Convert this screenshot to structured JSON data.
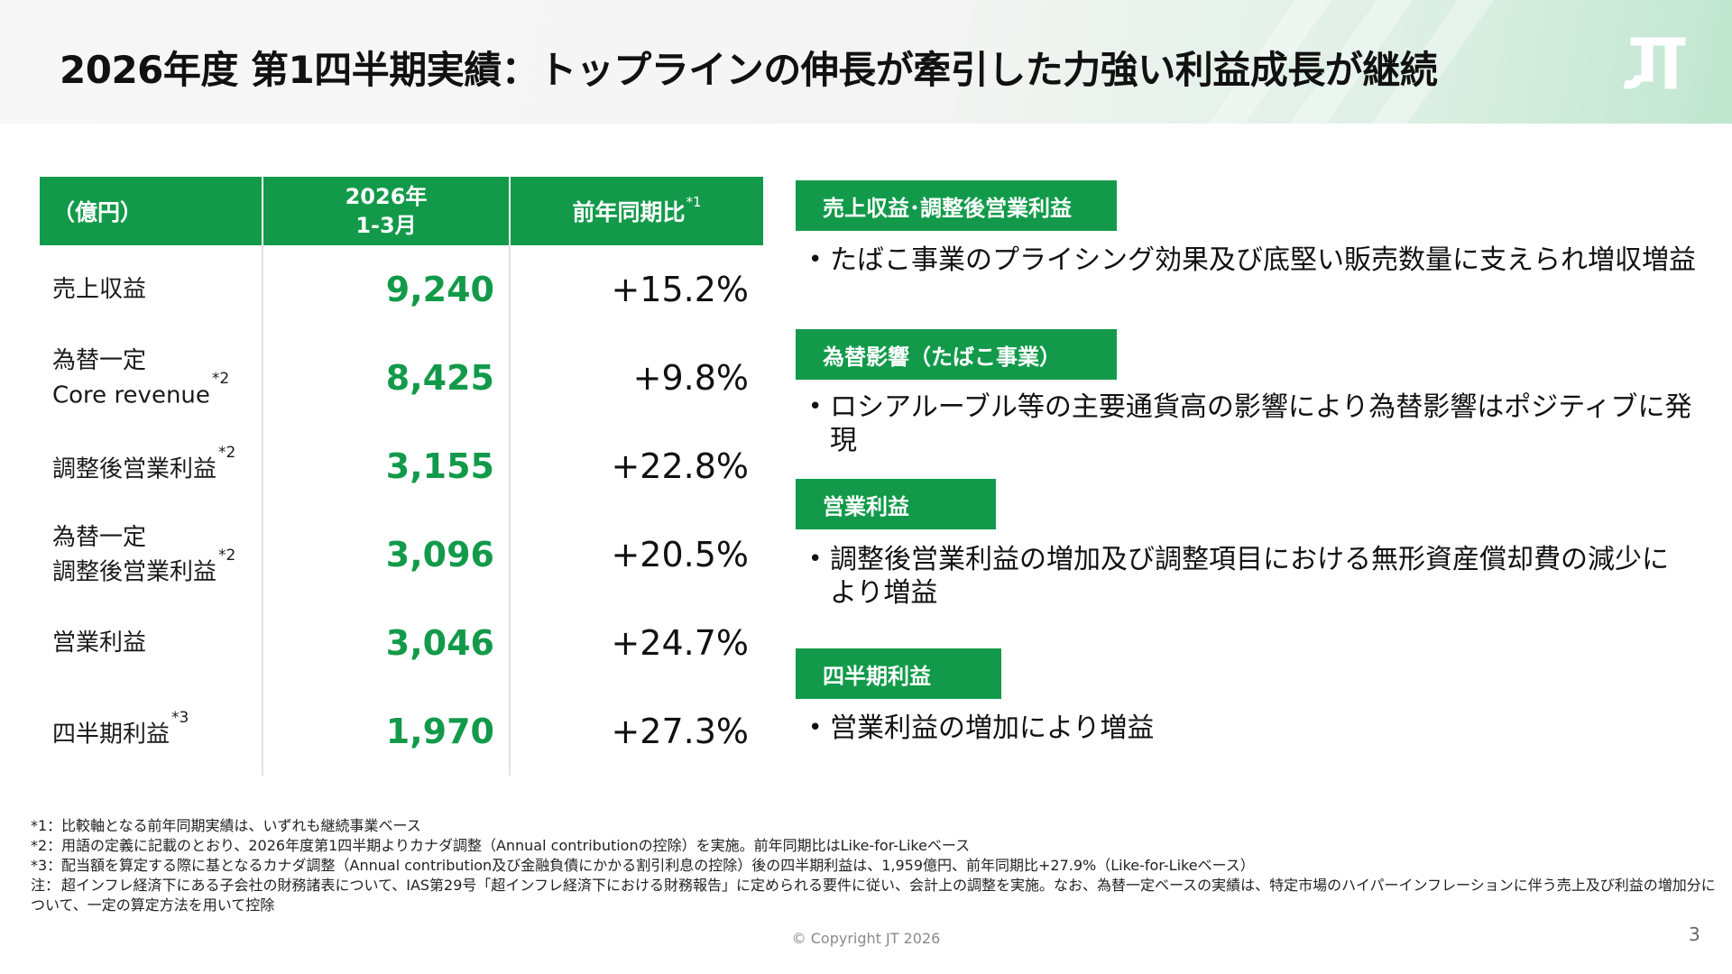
{
  "header": {
    "title": "2026年度 第1四半期実績：トップラインの伸長が牽引した力強い利益成長が継続",
    "logo_text": "JT"
  },
  "table": {
    "col1_header": "（億円）",
    "col2_header_line1": "2026年",
    "col2_header_line2": "1-3月",
    "col3_header": "前年同期比",
    "col3_header_note": "*1",
    "rows": [
      {
        "label_line1": "売上収益",
        "label_line2": "",
        "note": "",
        "value": "9,240",
        "change": "+15.2%"
      },
      {
        "label_line1": "為替一定",
        "label_line2": "Core revenue",
        "note": "*2",
        "value": "8,425",
        "change": "+9.8%"
      },
      {
        "label_line1": "調整後営業利益",
        "label_line2": "",
        "note": "*2",
        "value": "3,155",
        "change": "+22.8%"
      },
      {
        "label_line1": "為替一定",
        "label_line2": "調整後営業利益",
        "note": "*2",
        "value": "3,096",
        "change": "+20.5%"
      },
      {
        "label_line1": "営業利益",
        "label_line2": "",
        "note": "",
        "value": "3,046",
        "change": "+24.7%"
      },
      {
        "label_line1": "四半期利益",
        "label_line2": "",
        "note": "*3",
        "value": "1,970",
        "change": "+27.3%"
      }
    ]
  },
  "sections": [
    {
      "label": "売上収益･調整後営業利益",
      "bullet": "たばこ事業のプライシング効果及び底堅い販売数量に支えられ増収増益"
    },
    {
      "label": "為替影響（たばこ事業）",
      "bullet": "ロシアルーブル等の主要通貨高の影響により為替影響はポジティブに発現"
    },
    {
      "label": "営業利益",
      "bullet": "調整後営業利益の増加及び調整項目における無形資産償却費の減少により増益"
    },
    {
      "label": "四半期利益",
      "bullet": "営業利益の増加により増益"
    }
  ],
  "bullet_symbol": "•",
  "footnotes": [
    {
      "mark": "*1：",
      "text": "比較軸となる前年同期実績は、いずれも継続事業ベース"
    },
    {
      "mark": "*2：",
      "text": "用語の定義に記載のとおり、2026年度第1四半期よりカナダ調整（Annual contributionの控除）を実施。前年同期比はLike-for-Likeベース"
    },
    {
      "mark": "*3：",
      "text": "配当額を算定する際に基となるカナダ調整（Annual contribution及び金融負債にかかる割引利息の控除）後の四半期利益は、1,959億円、前年同期比+27.9%（Like-for-Likeベース）"
    },
    {
      "mark": "注：",
      "text": "超インフレ経済下にある子会社の財務諸表について、IAS第29号「超インフレ経済下における財務報告」に定められる要件に従い、会計上の調整を実施。なお、為替一定ベースの実績は、特定市場のハイパーインフレーションに伴う売上及び利益の増加分に",
      "cont": "ついて、一定の算定方法を用いて控除"
    }
  ],
  "copyright": "© Copyright JT 2026",
  "page_number": "3",
  "colors": {
    "accent_green": "#129a4a",
    "header_bg": "#f3f4f3"
  }
}
